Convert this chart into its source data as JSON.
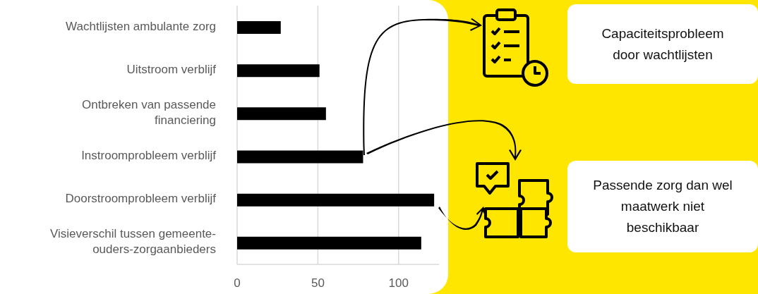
{
  "chart_data": {
    "type": "bar",
    "orientation": "horizontal",
    "categories": [
      "Wachtlijsten ambulante zorg",
      "Uitstroom verblijf",
      "Ontbreken van passende financiering",
      "Instroomprobleem verblijf",
      "Doorstroomprobleem verblijf",
      "Visieverschil tussen gemeente-ouders-zorgaanbieders"
    ],
    "values": [
      27,
      51,
      55,
      78,
      122,
      114
    ],
    "color": "#000000",
    "xlim": [
      0,
      125
    ],
    "xticks": [
      0,
      50,
      100
    ],
    "grid": "x",
    "annotations": [
      "Capaciteitsprobleem door wachtlijsten",
      "Passende zorg dan wel maatwerk niet beschikbaar"
    ]
  }
}
